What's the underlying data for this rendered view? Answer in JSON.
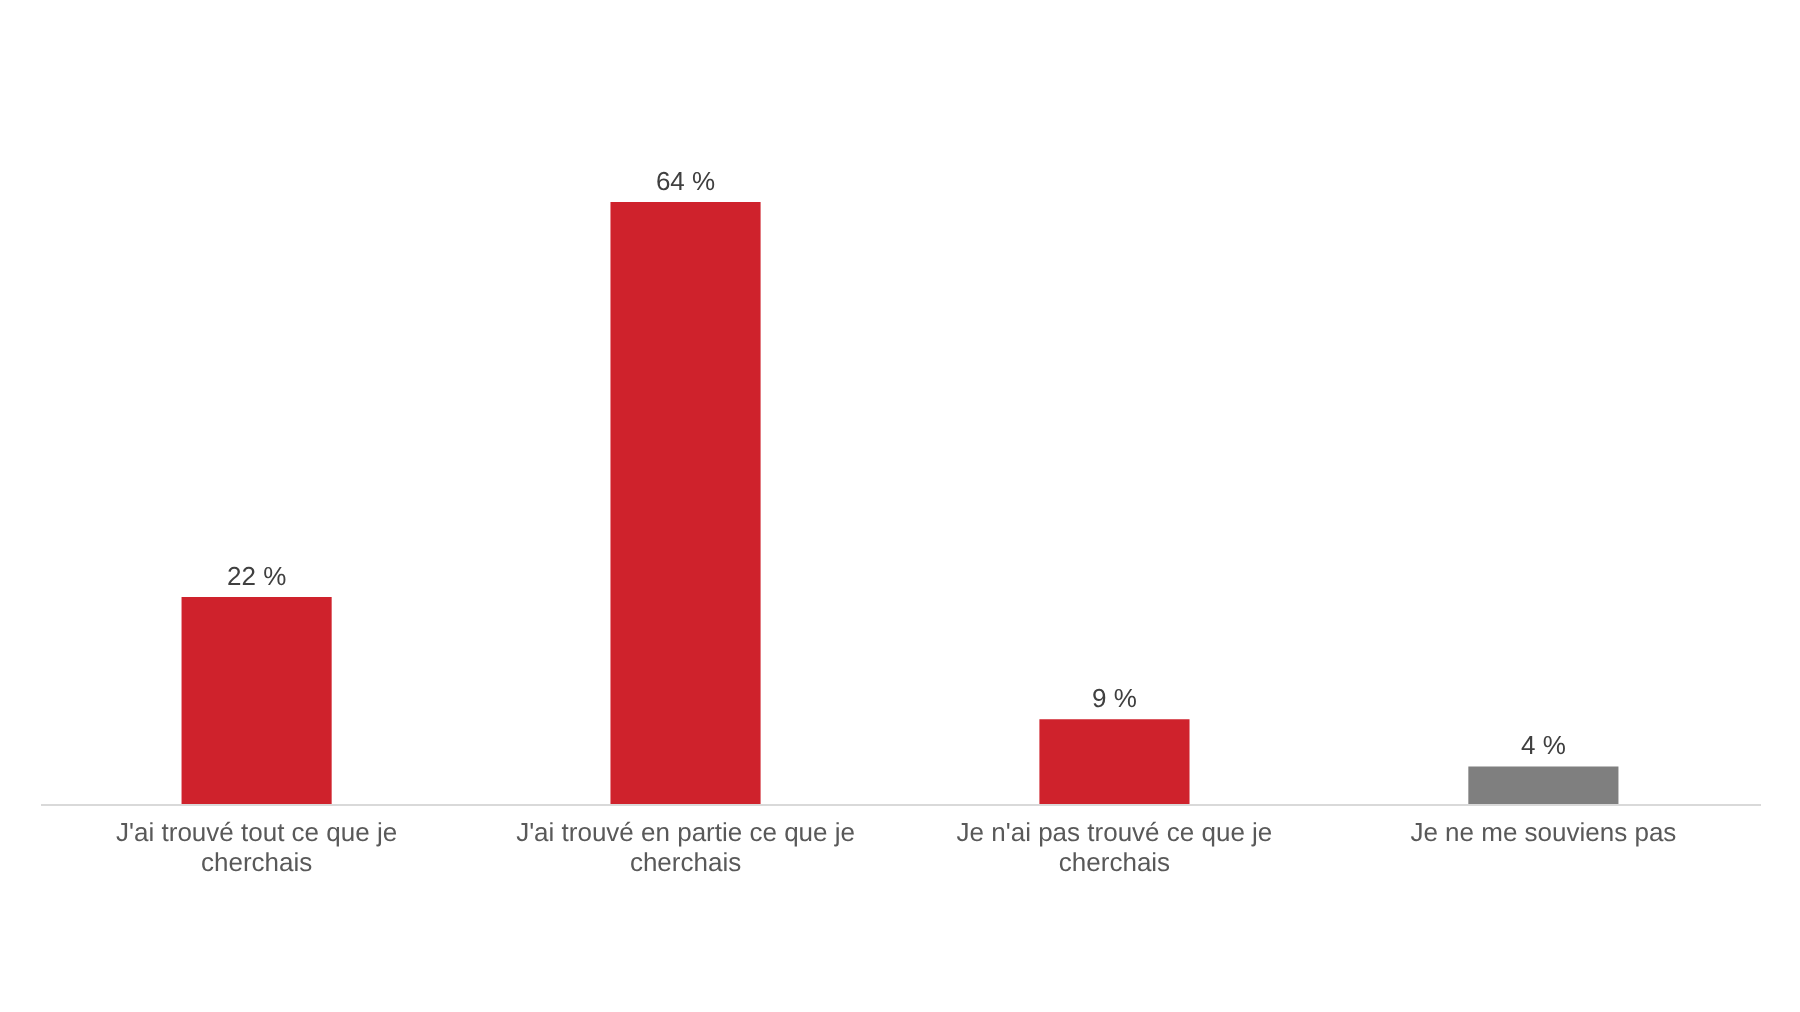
{
  "chart_data": {
    "type": "bar",
    "categories": [
      "J'ai trouvé tout ce que je cherchais",
      "J'ai trouvé en partie ce que je cherchais",
      "Je n'ai pas trouvé ce que je cherchais",
      "Je ne me souviens pas"
    ],
    "values": [
      22,
      64,
      9,
      4
    ],
    "colors": [
      "#cf222c",
      "#cf222c",
      "#cf222c",
      "#7f7f7f"
    ],
    "value_labels": [
      "22 %",
      "64 %",
      "9 %",
      "4 %"
    ]
  }
}
